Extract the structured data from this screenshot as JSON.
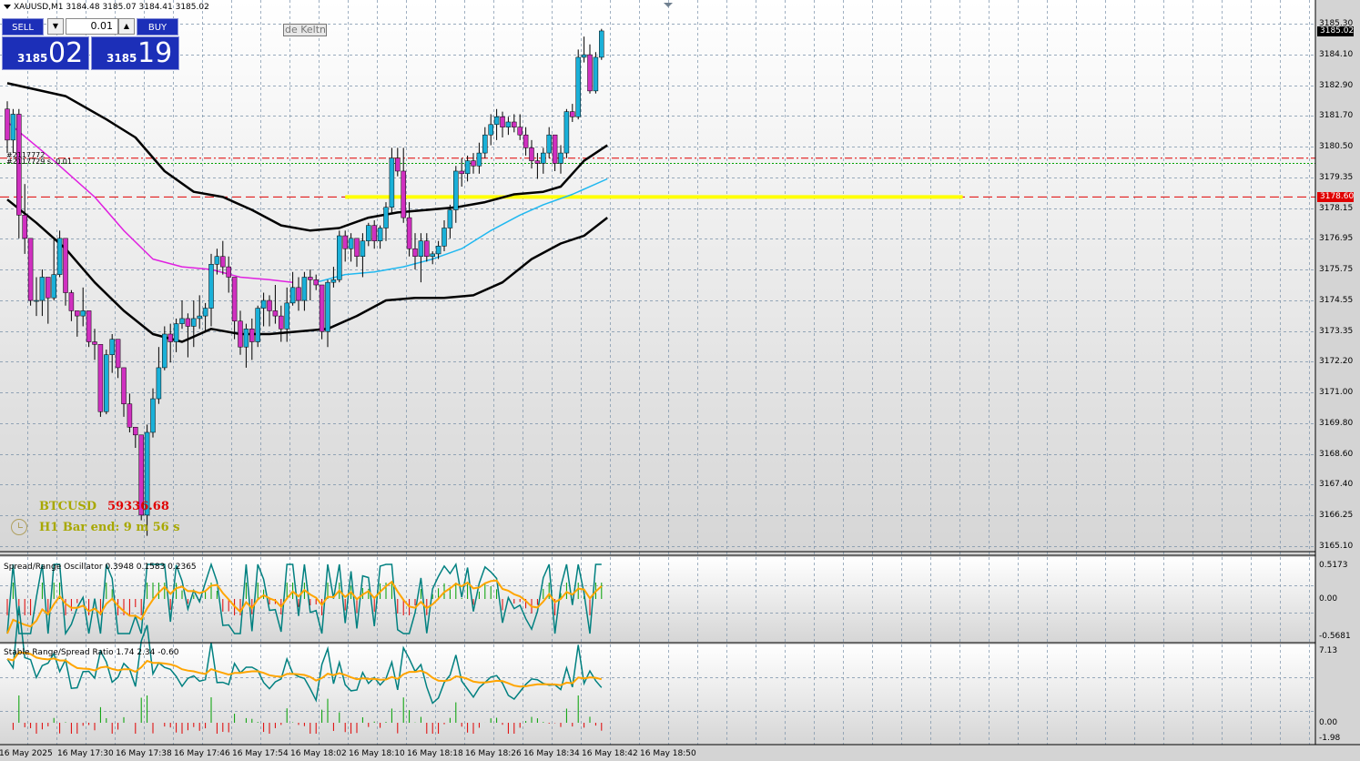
{
  "header": {
    "symbol": "XAUUSD,M1",
    "ohlc": "3184.48 3185.07 3184.41 3185.02"
  },
  "trade_panel": {
    "sell_label": "SELL",
    "buy_label": "BUY",
    "lot": "0.01",
    "sell_small": "3185",
    "sell_big": "02",
    "buy_small": "3185",
    "buy_big": "19",
    "color_bg": "#1c2fb8"
  },
  "object_label": "de Keltn",
  "chart_lines_text": {
    "line1": "#2117772",
    "line2": "#2117729 s. 0.01"
  },
  "info": {
    "btc_symbol": "BTCUSD",
    "btc_value": "59336.68",
    "bar_end": "H1 Bar end: 9 m 56 s"
  },
  "price_axis": [
    "3185.30",
    "3184.10",
    "3182.90",
    "3181.70",
    "3180.50",
    "3179.35",
    "3178.15",
    "3176.95",
    "3175.75",
    "3174.55",
    "3173.35",
    "3172.20",
    "3171.00",
    "3169.80",
    "3168.60",
    "3167.40",
    "3166.25",
    "3165.10"
  ],
  "current_price": "3185.02",
  "line_price": "3178.60",
  "colors": {
    "bull": "#1ab0d8",
    "bear": "#d030c0",
    "keltner": "#000000",
    "ma_fast": "#20b8f0",
    "ma_slow": "#e020e0",
    "signal": "#ffa500",
    "osc": "#008080",
    "yellow_line": "#ffff00",
    "red_line": "#e00000"
  },
  "osc1": {
    "title": "Spread/Range Oscillator 0.3948 0.1583 0.2365",
    "axis": [
      "0.5173",
      "0.00",
      "-0.5681"
    ]
  },
  "osc2": {
    "title": "Stable Range/Spread Ratio 1.74 2.34 -0.60",
    "axis": [
      "7.13",
      "0.00",
      "-1.98"
    ]
  },
  "time_axis": [
    "16 May 2025",
    "16 May 17:30",
    "16 May 17:38",
    "16 May 17:46",
    "16 May 17:54",
    "16 May 18:02",
    "16 May 18:10",
    "16 May 18:18",
    "16 May 18:26",
    "16 May 18:34",
    "16 May 18:42",
    "16 May 18:50"
  ],
  "chart_data": {
    "type": "candlestick",
    "symbol": "XAUUSD",
    "timeframe": "M1",
    "ohlc": [
      [
        3182.0,
        3182.3,
        3180.3,
        3180.8
      ],
      [
        3180.8,
        3182.0,
        3180.3,
        3181.8
      ],
      [
        3181.8,
        3182.0,
        3177.0,
        3177.9
      ],
      [
        3177.9,
        3179.1,
        3176.4,
        3177.0
      ],
      [
        3177.0,
        3177.0,
        3174.4,
        3174.6
      ],
      [
        3174.6,
        3175.5,
        3174.0,
        3174.6
      ],
      [
        3174.6,
        3175.8,
        3174.0,
        3175.5
      ],
      [
        3175.5,
        3175.5,
        3173.7,
        3174.7
      ],
      [
        3174.7,
        3177.0,
        3174.6,
        3175.6
      ],
      [
        3175.6,
        3177.3,
        3175.5,
        3177.0
      ],
      [
        3177.0,
        3177.0,
        3174.4,
        3174.9
      ],
      [
        3174.9,
        3175.0,
        3173.8,
        3174.2
      ],
      [
        3174.2,
        3174.2,
        3173.2,
        3174.0
      ],
      [
        3174.0,
        3175.1,
        3173.6,
        3174.2
      ],
      [
        3174.2,
        3174.2,
        3172.8,
        3173.0
      ],
      [
        3173.0,
        3173.5,
        3172.3,
        3172.9
      ],
      [
        3172.9,
        3172.9,
        3170.1,
        3170.3
      ],
      [
        3170.3,
        3172.7,
        3170.2,
        3172.5
      ],
      [
        3172.5,
        3173.3,
        3171.8,
        3173.1
      ],
      [
        3173.1,
        3173.1,
        3171.6,
        3172.0
      ],
      [
        3172.0,
        3172.0,
        3170.1,
        3170.6
      ],
      [
        3170.6,
        3171.0,
        3169.5,
        3169.7
      ],
      [
        3169.7,
        3169.7,
        3168.9,
        3169.4
      ],
      [
        3169.4,
        3169.4,
        3166.1,
        3166.3
      ],
      [
        3166.3,
        3169.8,
        3165.5,
        3169.5
      ],
      [
        3169.5,
        3171.2,
        3169.3,
        3170.8
      ],
      [
        3170.8,
        3172.8,
        3170.6,
        3172.0
      ],
      [
        3172.0,
        3173.6,
        3171.9,
        3173.3
      ],
      [
        3173.3,
        3173.7,
        3172.2,
        3173.0
      ],
      [
        3173.0,
        3173.9,
        3172.6,
        3173.7
      ],
      [
        3173.7,
        3174.6,
        3173.5,
        3173.9
      ],
      [
        3173.9,
        3174.1,
        3172.4,
        3173.6
      ],
      [
        3173.6,
        3174.6,
        3172.8,
        3173.9
      ],
      [
        3173.9,
        3174.8,
        3173.5,
        3174.0
      ],
      [
        3174.0,
        3174.5,
        3173.4,
        3174.3
      ],
      [
        3174.3,
        3176.4,
        3173.6,
        3176.0
      ],
      [
        3176.0,
        3176.6,
        3175.6,
        3176.3
      ],
      [
        3176.3,
        3176.9,
        3175.6,
        3175.9
      ],
      [
        3175.9,
        3176.3,
        3174.9,
        3175.5
      ],
      [
        3175.5,
        3175.5,
        3173.1,
        3173.8
      ],
      [
        3173.8,
        3174.2,
        3172.5,
        3172.8
      ],
      [
        3172.8,
        3173.7,
        3172.0,
        3173.5
      ],
      [
        3173.5,
        3173.9,
        3172.3,
        3173.0
      ],
      [
        3173.0,
        3174.4,
        3172.8,
        3174.3
      ],
      [
        3174.3,
        3174.9,
        3173.6,
        3174.6
      ],
      [
        3174.6,
        3174.8,
        3173.6,
        3174.2
      ],
      [
        3174.2,
        3175.2,
        3173.7,
        3174.0
      ],
      [
        3174.0,
        3174.4,
        3173.0,
        3173.5
      ],
      [
        3173.5,
        3175.1,
        3173.0,
        3174.5
      ],
      [
        3174.5,
        3175.7,
        3174.4,
        3175.1
      ],
      [
        3175.1,
        3175.5,
        3174.2,
        3174.6
      ],
      [
        3174.6,
        3175.7,
        3174.2,
        3175.5
      ],
      [
        3175.5,
        3175.8,
        3174.6,
        3175.4
      ],
      [
        3175.4,
        3175.6,
        3175.0,
        3175.2
      ],
      [
        3175.2,
        3175.2,
        3173.1,
        3173.4
      ],
      [
        3173.4,
        3175.4,
        3172.8,
        3175.3
      ],
      [
        3175.3,
        3175.9,
        3175.1,
        3175.4
      ],
      [
        3175.4,
        3177.3,
        3175.3,
        3177.1
      ],
      [
        3177.1,
        3177.3,
        3176.1,
        3176.6
      ],
      [
        3176.6,
        3177.2,
        3176.1,
        3177.0
      ],
      [
        3177.0,
        3177.0,
        3175.9,
        3176.3
      ],
      [
        3176.3,
        3177.2,
        3175.5,
        3176.9
      ],
      [
        3176.9,
        3177.6,
        3176.7,
        3177.5
      ],
      [
        3177.5,
        3177.7,
        3176.6,
        3176.9
      ],
      [
        3176.9,
        3177.5,
        3176.6,
        3177.4
      ],
      [
        3177.4,
        3178.4,
        3176.9,
        3178.2
      ],
      [
        3178.2,
        3180.5,
        3178.0,
        3180.1
      ],
      [
        3180.1,
        3180.5,
        3179.4,
        3179.6
      ],
      [
        3179.6,
        3180.5,
        3177.6,
        3177.8
      ],
      [
        3177.8,
        3178.4,
        3176.3,
        3176.6
      ],
      [
        3176.6,
        3177.2,
        3175.8,
        3176.3
      ],
      [
        3176.3,
        3177.2,
        3175.3,
        3176.9
      ],
      [
        3176.9,
        3177.2,
        3176.1,
        3176.3
      ],
      [
        3176.3,
        3176.5,
        3176.0,
        3176.4
      ],
      [
        3176.4,
        3176.9,
        3176.2,
        3176.7
      ],
      [
        3176.7,
        3177.7,
        3176.5,
        3177.4
      ],
      [
        3177.4,
        3178.3,
        3177.0,
        3178.1
      ],
      [
        3178.1,
        3179.8,
        3177.6,
        3179.6
      ],
      [
        3179.6,
        3180.1,
        3179.0,
        3179.5
      ],
      [
        3179.5,
        3180.2,
        3179.2,
        3180.0
      ],
      [
        3180.0,
        3180.3,
        3179.5,
        3179.8
      ],
      [
        3179.8,
        3180.7,
        3179.5,
        3180.3
      ],
      [
        3180.3,
        3181.3,
        3180.1,
        3181.0
      ],
      [
        3181.0,
        3181.8,
        3180.6,
        3181.4
      ],
      [
        3181.4,
        3182.0,
        3180.8,
        3181.7
      ],
      [
        3181.7,
        3181.9,
        3180.9,
        3181.3
      ],
      [
        3181.3,
        3181.7,
        3181.0,
        3181.5
      ],
      [
        3181.5,
        3181.8,
        3181.1,
        3181.3
      ],
      [
        3181.3,
        3181.8,
        3180.8,
        3181.0
      ],
      [
        3181.0,
        3181.3,
        3180.2,
        3180.5
      ],
      [
        3180.5,
        3180.8,
        3179.7,
        3180.0
      ],
      [
        3180.0,
        3180.3,
        3179.3,
        3179.9
      ],
      [
        3179.9,
        3180.5,
        3179.5,
        3180.3
      ],
      [
        3180.3,
        3181.3,
        3180.1,
        3181.0
      ],
      [
        3181.0,
        3181.0,
        3179.6,
        3179.9
      ],
      [
        3179.9,
        3180.6,
        3179.5,
        3180.3
      ],
      [
        3180.3,
        3182.0,
        3180.1,
        3181.9
      ],
      [
        3181.9,
        3182.2,
        3181.5,
        3181.7
      ],
      [
        3181.7,
        3184.3,
        3181.6,
        3184.0
      ],
      [
        3184.0,
        3184.8,
        3183.8,
        3184.1
      ],
      [
        3184.1,
        3184.5,
        3182.6,
        3182.7
      ],
      [
        3182.7,
        3184.2,
        3182.6,
        3184.0
      ],
      [
        3184.0,
        3185.1,
        3183.9,
        3185.02
      ]
    ],
    "keltner_upper": [
      [
        0,
        3183.0
      ],
      [
        10,
        3182.5
      ],
      [
        17,
        3181.6
      ],
      [
        22,
        3180.9
      ],
      [
        27,
        3179.6
      ],
      [
        32,
        3178.8
      ],
      [
        37,
        3178.6
      ],
      [
        42,
        3178.1
      ],
      [
        47,
        3177.5
      ],
      [
        52,
        3177.3
      ],
      [
        57,
        3177.4
      ],
      [
        62,
        3177.8
      ],
      [
        67,
        3178.0
      ],
      [
        72,
        3178.1
      ],
      [
        77,
        3178.2
      ],
      [
        82,
        3178.4
      ],
      [
        87,
        3178.7
      ],
      [
        92,
        3178.8
      ],
      [
        95,
        3179.0
      ],
      [
        99,
        3180.0
      ],
      [
        103,
        3180.6
      ]
    ],
    "keltner_lower": [
      [
        0,
        3178.5
      ],
      [
        5,
        3177.6
      ],
      [
        10,
        3176.6
      ],
      [
        15,
        3175.3
      ],
      [
        20,
        3174.2
      ],
      [
        25,
        3173.3
      ],
      [
        30,
        3173.0
      ],
      [
        35,
        3173.5
      ],
      [
        40,
        3173.3
      ],
      [
        45,
        3173.3
      ],
      [
        50,
        3173.4
      ],
      [
        55,
        3173.5
      ],
      [
        60,
        3174.0
      ],
      [
        65,
        3174.6
      ],
      [
        70,
        3174.7
      ],
      [
        75,
        3174.7
      ],
      [
        80,
        3174.8
      ],
      [
        85,
        3175.3
      ],
      [
        90,
        3176.2
      ],
      [
        95,
        3176.8
      ],
      [
        99,
        3177.1
      ],
      [
        103,
        3177.8
      ]
    ],
    "ma_slow": [
      [
        0,
        3181.5
      ],
      [
        8,
        3180.0
      ],
      [
        15,
        3178.6
      ],
      [
        20,
        3177.3
      ],
      [
        25,
        3176.2
      ],
      [
        30,
        3175.9
      ],
      [
        35,
        3175.8
      ],
      [
        40,
        3175.5
      ],
      [
        45,
        3175.4
      ],
      [
        49,
        3175.3
      ]
    ],
    "ma_fast": [
      [
        53,
        3175.3
      ],
      [
        58,
        3175.6
      ],
      [
        63,
        3175.7
      ],
      [
        68,
        3175.9
      ],
      [
        73,
        3176.2
      ],
      [
        78,
        3176.6
      ],
      [
        83,
        3177.3
      ],
      [
        88,
        3177.9
      ],
      [
        92,
        3178.3
      ],
      [
        97,
        3178.7
      ],
      [
        103,
        3179.3
      ]
    ],
    "horizontal_lines": [
      {
        "price": 3180.1,
        "style": "dash-dot",
        "color": "#e00000"
      },
      {
        "price": 3179.9,
        "style": "dotted",
        "color": "#00a000"
      },
      {
        "price": 3178.6,
        "style": "dashed",
        "color": "#e00000"
      },
      {
        "price": 3178.6,
        "style": "solid-thick",
        "color": "#ffff00",
        "from_bar": 58,
        "to_bar": 164
      }
    ],
    "ylim": [
      3165.1,
      3185.3
    ]
  }
}
